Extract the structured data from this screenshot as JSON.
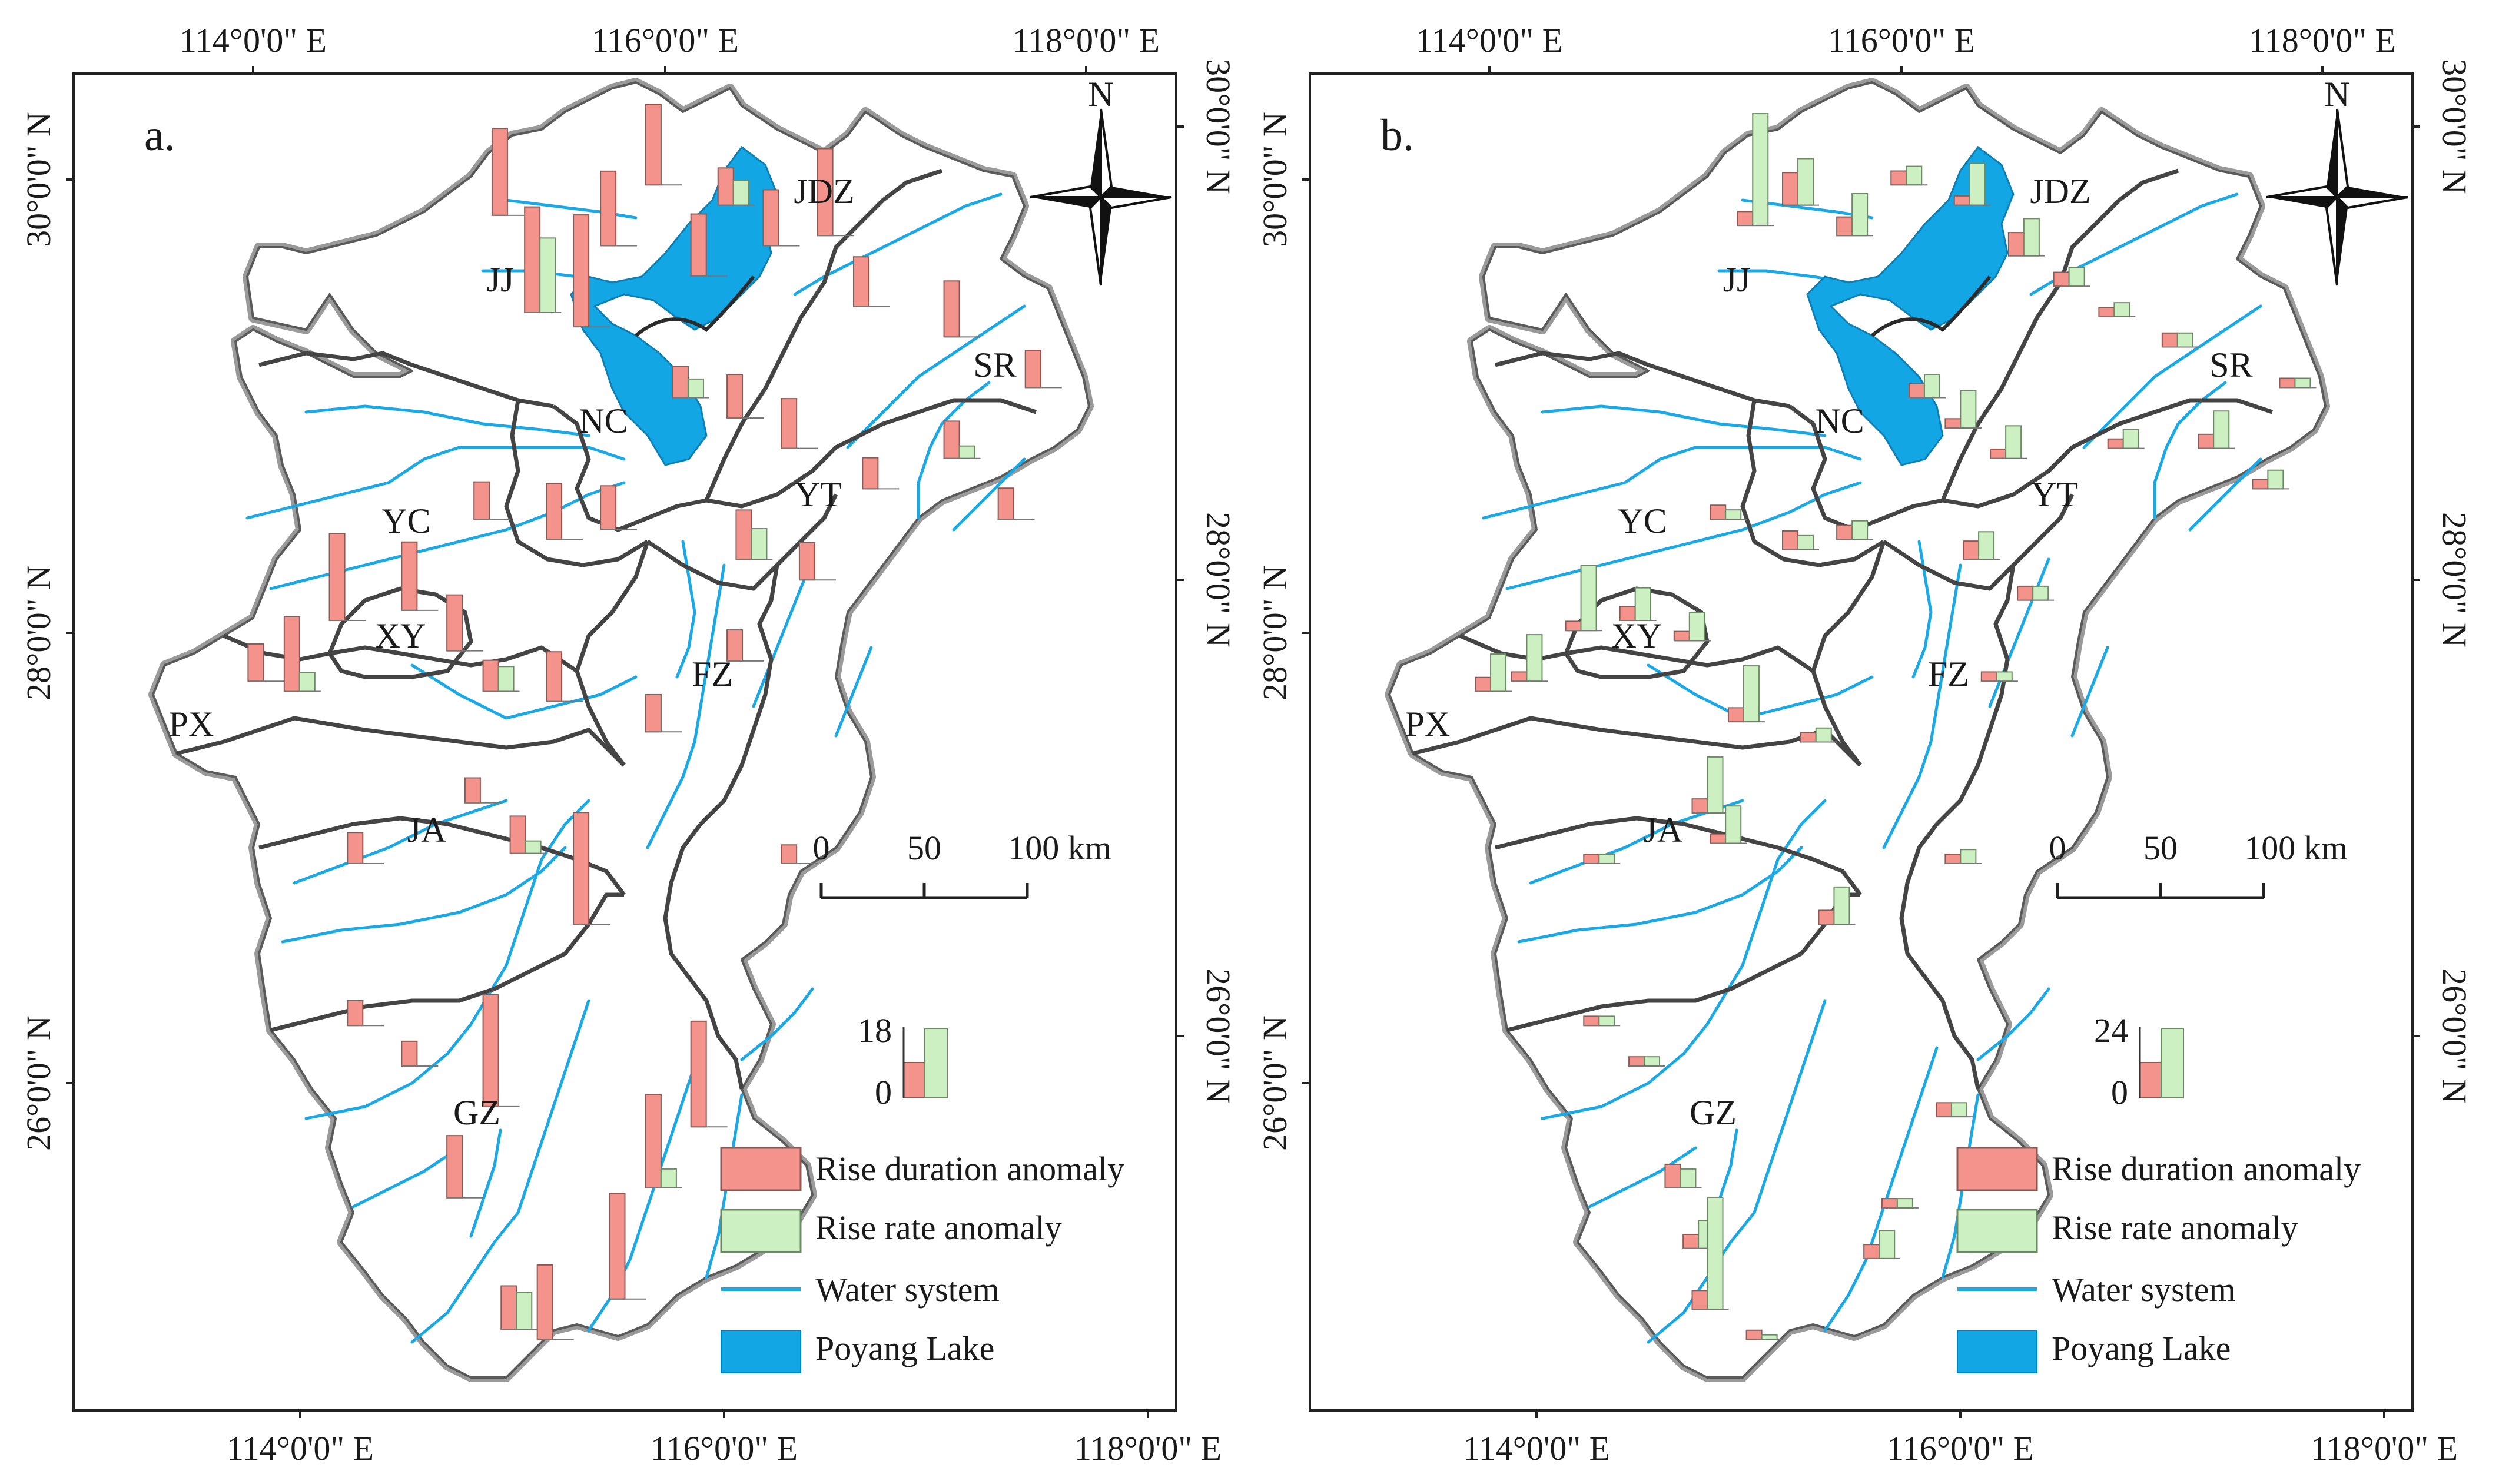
{
  "lon_labels": [
    "114°0'0\" E",
    "116°0'0\" E",
    "118°0'0\" E"
  ],
  "lat_labels": [
    "26°0'0\" N",
    "28°0'0\" N",
    "30°0'0\" N"
  ],
  "north_label": "N",
  "colors": {
    "rise_duration": "#f4938c",
    "rise_rate": "#cdf0c2",
    "water": "#1ba8e6",
    "lake": "#12a6e4",
    "boundary_outer": "#9a9a9a",
    "boundary_inner": "#444444"
  },
  "legend": {
    "rise_duration": "Rise duration anomaly",
    "rise_rate": "Rise rate anomaly",
    "water": "Water system",
    "lake": "Poyang Lake"
  },
  "scale_labels": [
    "0",
    "50",
    "100 km"
  ],
  "panels": [
    {
      "label": "a.",
      "key_max": "18",
      "key_min": "0",
      "cities": [
        {
          "name": "JJ"
        },
        {
          "name": "JDZ"
        },
        {
          "name": "SR"
        },
        {
          "name": "NC"
        },
        {
          "name": "YT"
        },
        {
          "name": "YC"
        },
        {
          "name": "XY"
        },
        {
          "name": "PX"
        },
        {
          "name": "FZ"
        },
        {
          "name": "JA"
        },
        {
          "name": "GZ"
        }
      ],
      "stations": [
        {
          "lon": 115.1,
          "lat": 29.9,
          "dur": 14,
          "rate": 0
        },
        {
          "lon": 115.28,
          "lat": 29.42,
          "dur": 17,
          "rate": 12
        },
        {
          "lon": 115.55,
          "lat": 29.35,
          "dur": 18,
          "rate": 0
        },
        {
          "lon": 115.7,
          "lat": 29.75,
          "dur": 12,
          "rate": 0
        },
        {
          "lon": 115.95,
          "lat": 30.05,
          "dur": 13,
          "rate": 0
        },
        {
          "lon": 116.2,
          "lat": 29.6,
          "dur": 10,
          "rate": 0
        },
        {
          "lon": 116.35,
          "lat": 29.95,
          "dur": 6,
          "rate": 4
        },
        {
          "lon": 116.6,
          "lat": 29.75,
          "dur": 9,
          "rate": 0
        },
        {
          "lon": 116.9,
          "lat": 29.8,
          "dur": 14,
          "rate": 0
        },
        {
          "lon": 117.1,
          "lat": 29.45,
          "dur": 8,
          "rate": 0
        },
        {
          "lon": 117.6,
          "lat": 29.3,
          "dur": 9,
          "rate": 0
        },
        {
          "lon": 118.05,
          "lat": 29.05,
          "dur": 6,
          "rate": 0
        },
        {
          "lon": 116.1,
          "lat": 29.0,
          "dur": 5,
          "rate": 3
        },
        {
          "lon": 116.4,
          "lat": 28.9,
          "dur": 7,
          "rate": 0
        },
        {
          "lon": 116.7,
          "lat": 28.75,
          "dur": 8,
          "rate": 0
        },
        {
          "lon": 117.15,
          "lat": 28.55,
          "dur": 5,
          "rate": 0
        },
        {
          "lon": 117.6,
          "lat": 28.7,
          "dur": 6,
          "rate": 2
        },
        {
          "lon": 117.9,
          "lat": 28.4,
          "dur": 5,
          "rate": 0
        },
        {
          "lon": 115.0,
          "lat": 28.4,
          "dur": 6,
          "rate": 0
        },
        {
          "lon": 115.4,
          "lat": 28.3,
          "dur": 9,
          "rate": 0
        },
        {
          "lon": 115.7,
          "lat": 28.35,
          "dur": 7,
          "rate": 0
        },
        {
          "lon": 116.45,
          "lat": 28.2,
          "dur": 8,
          "rate": 5
        },
        {
          "lon": 116.8,
          "lat": 28.1,
          "dur": 6,
          "rate": 0
        },
        {
          "lon": 114.6,
          "lat": 27.95,
          "dur": 11,
          "rate": 0
        },
        {
          "lon": 114.85,
          "lat": 27.75,
          "dur": 9,
          "rate": 0
        },
        {
          "lon": 114.2,
          "lat": 27.9,
          "dur": 14,
          "rate": 0
        },
        {
          "lon": 113.95,
          "lat": 27.55,
          "dur": 12,
          "rate": 3
        },
        {
          "lon": 113.75,
          "lat": 27.6,
          "dur": 6,
          "rate": 0
        },
        {
          "lon": 115.05,
          "lat": 27.55,
          "dur": 5,
          "rate": 4
        },
        {
          "lon": 115.4,
          "lat": 27.5,
          "dur": 8,
          "rate": 0
        },
        {
          "lon": 115.95,
          "lat": 27.35,
          "dur": 6,
          "rate": 0
        },
        {
          "lon": 116.4,
          "lat": 27.7,
          "dur": 5,
          "rate": 0
        },
        {
          "lon": 114.95,
          "lat": 27.0,
          "dur": 4,
          "rate": 0
        },
        {
          "lon": 115.2,
          "lat": 26.75,
          "dur": 6,
          "rate": 2
        },
        {
          "lon": 114.3,
          "lat": 26.7,
          "dur": 5,
          "rate": 0
        },
        {
          "lon": 115.55,
          "lat": 26.4,
          "dur": 18,
          "rate": 0
        },
        {
          "lon": 116.7,
          "lat": 26.7,
          "dur": 3,
          "rate": 0
        },
        {
          "lon": 114.3,
          "lat": 25.9,
          "dur": 4,
          "rate": 0
        },
        {
          "lon": 114.6,
          "lat": 25.7,
          "dur": 4,
          "rate": 0
        },
        {
          "lon": 115.05,
          "lat": 25.5,
          "dur": 18,
          "rate": 0
        },
        {
          "lon": 116.2,
          "lat": 25.4,
          "dur": 17,
          "rate": 0
        },
        {
          "lon": 114.85,
          "lat": 25.05,
          "dur": 10,
          "rate": 0
        },
        {
          "lon": 115.95,
          "lat": 25.1,
          "dur": 15,
          "rate": 3
        },
        {
          "lon": 115.75,
          "lat": 24.55,
          "dur": 17,
          "rate": 0
        },
        {
          "lon": 115.15,
          "lat": 24.4,
          "dur": 7,
          "rate": 6
        },
        {
          "lon": 115.35,
          "lat": 24.35,
          "dur": 12,
          "rate": 0
        }
      ]
    },
    {
      "label": "b.",
      "key_max": "24",
      "key_min": "0",
      "cities": [
        {
          "name": "JJ"
        },
        {
          "name": "JDZ"
        },
        {
          "name": "SR"
        },
        {
          "name": "NC"
        },
        {
          "name": "YT"
        },
        {
          "name": "YC"
        },
        {
          "name": "XY"
        },
        {
          "name": "PX"
        },
        {
          "name": "FZ"
        },
        {
          "name": "JA"
        },
        {
          "name": "GZ"
        }
      ],
      "stations": [
        {
          "lon": 115.15,
          "lat": 29.85,
          "dur": 3,
          "rate": 24
        },
        {
          "lon": 115.4,
          "lat": 29.95,
          "dur": 7,
          "rate": 10
        },
        {
          "lon": 115.7,
          "lat": 29.8,
          "dur": 4,
          "rate": 9
        },
        {
          "lon": 116.0,
          "lat": 30.05,
          "dur": 3,
          "rate": 4
        },
        {
          "lon": 116.35,
          "lat": 29.95,
          "dur": 2,
          "rate": 9
        },
        {
          "lon": 116.65,
          "lat": 29.7,
          "dur": 5,
          "rate": 8
        },
        {
          "lon": 116.9,
          "lat": 29.55,
          "dur": 3,
          "rate": 4
        },
        {
          "lon": 117.15,
          "lat": 29.4,
          "dur": 2,
          "rate": 3
        },
        {
          "lon": 117.5,
          "lat": 29.25,
          "dur": 3,
          "rate": 3
        },
        {
          "lon": 118.15,
          "lat": 29.05,
          "dur": 2,
          "rate": 2
        },
        {
          "lon": 116.1,
          "lat": 29.0,
          "dur": 3,
          "rate": 5
        },
        {
          "lon": 116.3,
          "lat": 28.85,
          "dur": 2,
          "rate": 8
        },
        {
          "lon": 116.55,
          "lat": 28.7,
          "dur": 2,
          "rate": 7
        },
        {
          "lon": 117.2,
          "lat": 28.75,
          "dur": 2,
          "rate": 4
        },
        {
          "lon": 117.7,
          "lat": 28.75,
          "dur": 3,
          "rate": 8
        },
        {
          "lon": 118.0,
          "lat": 28.55,
          "dur": 2,
          "rate": 4
        },
        {
          "lon": 115.0,
          "lat": 28.4,
          "dur": 3,
          "rate": 2
        },
        {
          "lon": 115.4,
          "lat": 28.25,
          "dur": 4,
          "rate": 3
        },
        {
          "lon": 115.7,
          "lat": 28.3,
          "dur": 3,
          "rate": 4
        },
        {
          "lon": 116.4,
          "lat": 28.2,
          "dur": 4,
          "rate": 6
        },
        {
          "lon": 116.7,
          "lat": 28.0,
          "dur": 3,
          "rate": 3
        },
        {
          "lon": 114.5,
          "lat": 27.9,
          "dur": 3,
          "rate": 7
        },
        {
          "lon": 114.8,
          "lat": 27.8,
          "dur": 2,
          "rate": 6
        },
        {
          "lon": 114.2,
          "lat": 27.85,
          "dur": 2,
          "rate": 14
        },
        {
          "lon": 113.9,
          "lat": 27.6,
          "dur": 2,
          "rate": 10
        },
        {
          "lon": 113.7,
          "lat": 27.55,
          "dur": 3,
          "rate": 8
        },
        {
          "lon": 115.1,
          "lat": 27.4,
          "dur": 3,
          "rate": 12
        },
        {
          "lon": 116.5,
          "lat": 27.6,
          "dur": 2,
          "rate": 2
        },
        {
          "lon": 115.5,
          "lat": 27.3,
          "dur": 2,
          "rate": 3
        },
        {
          "lon": 114.9,
          "lat": 26.95,
          "dur": 3,
          "rate": 12
        },
        {
          "lon": 115.0,
          "lat": 26.8,
          "dur": 2,
          "rate": 8
        },
        {
          "lon": 114.3,
          "lat": 26.7,
          "dur": 2,
          "rate": 2
        },
        {
          "lon": 115.6,
          "lat": 26.4,
          "dur": 3,
          "rate": 8
        },
        {
          "lon": 116.3,
          "lat": 26.7,
          "dur": 2,
          "rate": 3
        },
        {
          "lon": 114.3,
          "lat": 25.9,
          "dur": 2,
          "rate": 2
        },
        {
          "lon": 114.55,
          "lat": 25.7,
          "dur": 2,
          "rate": 2
        },
        {
          "lon": 116.25,
          "lat": 25.45,
          "dur": 3,
          "rate": 3
        },
        {
          "lon": 114.75,
          "lat": 25.1,
          "dur": 5,
          "rate": 4
        },
        {
          "lon": 114.85,
          "lat": 24.8,
          "dur": 3,
          "rate": 6
        },
        {
          "lon": 115.95,
          "lat": 25.0,
          "dur": 2,
          "rate": 2
        },
        {
          "lon": 115.85,
          "lat": 24.75,
          "dur": 3,
          "rate": 6
        },
        {
          "lon": 114.9,
          "lat": 24.5,
          "dur": 4,
          "rate": 24
        },
        {
          "lon": 115.2,
          "lat": 24.35,
          "dur": 2,
          "rate": 1
        }
      ]
    }
  ]
}
